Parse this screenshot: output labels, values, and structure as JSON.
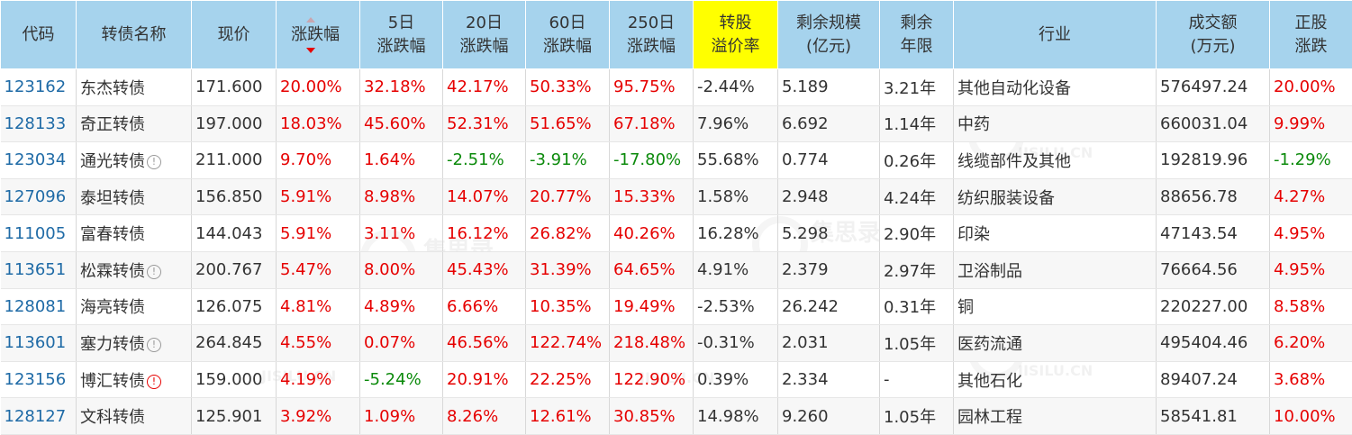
{
  "headers": {
    "code": "代码",
    "name": "转债名称",
    "price": "现价",
    "change": "涨跌幅",
    "chg5_l1": "5日",
    "chg5_l2": "涨跌幅",
    "chg20_l1": "20日",
    "chg20_l2": "涨跌幅",
    "chg60_l1": "60日",
    "chg60_l2": "涨跌幅",
    "chg250_l1": "250日",
    "chg250_l2": "涨跌幅",
    "premium_l1": "转股",
    "premium_l2": "溢价率",
    "size_l1": "剩余规模",
    "size_l2": "(亿元)",
    "years_l1": "剩余",
    "years_l2": "年限",
    "industry": "行业",
    "volume_l1": "成交额",
    "volume_l2": "(万元)",
    "stock_l1": "正股",
    "stock_l2": "涨跌"
  },
  "colors": {
    "header_bg": "#a6d3ed",
    "highlight": "#ffff00",
    "up": "#e60000",
    "down": "#0b8a0b",
    "code": "#1e6aa6"
  },
  "icons": {
    "sort": "sort-desc-icon",
    "info": "info-circle-icon",
    "warning": "warning-circle-icon"
  },
  "watermark": {
    "text": "集思录",
    "text_en": "JISILU.CN"
  },
  "rows": [
    {
      "code": "123162",
      "name": "东杰转债",
      "icon": "",
      "price": "171.600",
      "change": "20.00%",
      "chg5": "32.18%",
      "chg20": "42.17%",
      "chg60": "50.33%",
      "chg250": "95.75%",
      "premium": "-2.44%",
      "size": "5.189",
      "years": "3.21年",
      "industry": "其他自动化设备",
      "volume": "576497.24",
      "stock": "20.00%"
    },
    {
      "code": "128133",
      "name": "奇正转债",
      "icon": "",
      "price": "197.000",
      "change": "18.03%",
      "chg5": "45.60%",
      "chg20": "52.31%",
      "chg60": "51.65%",
      "chg250": "67.18%",
      "premium": "7.96%",
      "size": "6.692",
      "years": "1.14年",
      "industry": "中药",
      "volume": "660031.04",
      "stock": "9.99%"
    },
    {
      "code": "123034",
      "name": "通光转债",
      "icon": "info",
      "price": "211.000",
      "change": "9.70%",
      "chg5": "1.64%",
      "chg20": "-2.51%",
      "chg60": "-3.91%",
      "chg250": "-17.80%",
      "premium": "55.68%",
      "size": "0.774",
      "years": "0.26年",
      "industry": "线缆部件及其他",
      "volume": "192819.96",
      "stock": "-1.29%"
    },
    {
      "code": "127096",
      "name": "泰坦转债",
      "icon": "",
      "price": "156.850",
      "change": "5.91%",
      "chg5": "8.98%",
      "chg20": "14.07%",
      "chg60": "20.77%",
      "chg250": "15.33%",
      "premium": "1.58%",
      "size": "2.948",
      "years": "4.24年",
      "industry": "纺织服装设备",
      "volume": "88656.78",
      "stock": "4.27%"
    },
    {
      "code": "111005",
      "name": "富春转债",
      "icon": "",
      "price": "144.043",
      "change": "5.91%",
      "chg5": "3.11%",
      "chg20": "16.12%",
      "chg60": "26.82%",
      "chg250": "40.26%",
      "premium": "16.28%",
      "size": "5.298",
      "years": "2.90年",
      "industry": "印染",
      "volume": "47143.54",
      "stock": "4.95%"
    },
    {
      "code": "113651",
      "name": "松霖转债",
      "icon": "info",
      "price": "200.767",
      "change": "5.47%",
      "chg5": "8.00%",
      "chg20": "45.43%",
      "chg60": "31.39%",
      "chg250": "64.65%",
      "premium": "4.91%",
      "size": "2.379",
      "years": "2.97年",
      "industry": "卫浴制品",
      "volume": "76664.56",
      "stock": "4.95%"
    },
    {
      "code": "128081",
      "name": "海亮转债",
      "icon": "",
      "price": "126.075",
      "change": "4.81%",
      "chg5": "4.89%",
      "chg20": "6.66%",
      "chg60": "10.35%",
      "chg250": "19.49%",
      "premium": "-2.53%",
      "size": "26.242",
      "years": "0.31年",
      "industry": "铜",
      "volume": "220227.00",
      "stock": "8.58%"
    },
    {
      "code": "113601",
      "name": "塞力转债",
      "icon": "info",
      "price": "264.845",
      "change": "4.55%",
      "chg5": "0.07%",
      "chg20": "46.56%",
      "chg60": "122.74%",
      "chg250": "218.48%",
      "premium": "-0.31%",
      "size": "2.031",
      "years": "1.05年",
      "industry": "医药流通",
      "volume": "495404.46",
      "stock": "6.20%"
    },
    {
      "code": "123156",
      "name": "博汇转债",
      "icon": "warning",
      "price": "159.000",
      "change": "4.19%",
      "chg5": "-5.24%",
      "chg20": "20.91%",
      "chg60": "22.25%",
      "chg250": "122.90%",
      "premium": "0.39%",
      "size": "2.334",
      "years": "-",
      "industry": "其他石化",
      "volume": "89407.24",
      "stock": "3.68%"
    },
    {
      "code": "128127",
      "name": "文科转债",
      "icon": "",
      "price": "125.901",
      "change": "3.92%",
      "chg5": "1.09%",
      "chg20": "8.26%",
      "chg60": "12.61%",
      "chg250": "30.85%",
      "premium": "14.98%",
      "size": "9.260",
      "years": "1.05年",
      "industry": "园林工程",
      "volume": "58541.81",
      "stock": "10.00%"
    }
  ]
}
